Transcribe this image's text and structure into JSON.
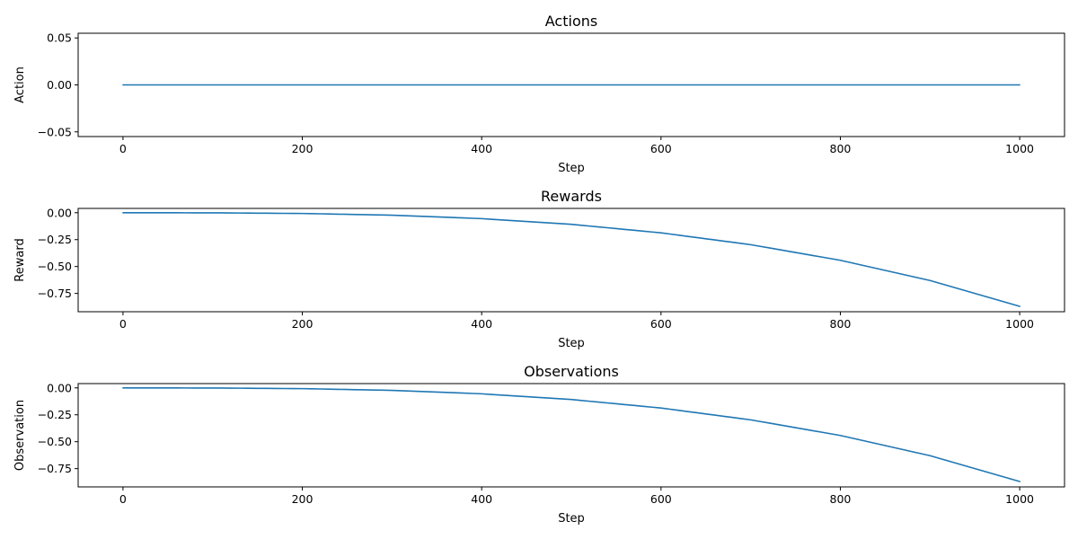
{
  "chart_data": [
    {
      "type": "line",
      "title": "Actions",
      "xlabel": "Step",
      "ylabel": "Action",
      "xlim": [
        -50,
        1050
      ],
      "ylim": [
        -0.055,
        0.055
      ],
      "xticks": [
        0,
        200,
        400,
        600,
        800,
        1000
      ],
      "xtick_labels": [
        "0",
        "200",
        "400",
        "600",
        "800",
        "1000"
      ],
      "yticks": [
        0.05,
        0.0,
        -0.05
      ],
      "ytick_labels": [
        "0.05",
        "0.00",
        "−0.05"
      ],
      "grid": false,
      "series": [
        {
          "color": "#1f77b4",
          "x": [
            0,
            1000
          ],
          "y": [
            0,
            0
          ]
        }
      ]
    },
    {
      "type": "line",
      "title": "Rewards",
      "xlabel": "Step",
      "ylabel": "Reward",
      "xlim": [
        -50,
        1050
      ],
      "ylim": [
        -0.92,
        0.04
      ],
      "xticks": [
        0,
        200,
        400,
        600,
        800,
        1000
      ],
      "xtick_labels": [
        "0",
        "200",
        "400",
        "600",
        "800",
        "1000"
      ],
      "yticks": [
        0.0,
        -0.25,
        -0.5,
        -0.75
      ],
      "ytick_labels": [
        "0.00",
        "−0.25",
        "−0.50",
        "−0.75"
      ],
      "grid": false,
      "series": [
        {
          "color": "#1f77b4",
          "x": [
            0,
            100,
            200,
            300,
            400,
            500,
            600,
            700,
            800,
            900,
            1000
          ],
          "y": [
            0.0,
            -0.001,
            -0.007,
            -0.023,
            -0.055,
            -0.108,
            -0.187,
            -0.297,
            -0.442,
            -0.63,
            -0.87
          ]
        }
      ]
    },
    {
      "type": "line",
      "title": "Observations",
      "xlabel": "Step",
      "ylabel": "Observation",
      "xlim": [
        -50,
        1050
      ],
      "ylim": [
        -0.92,
        0.04
      ],
      "xticks": [
        0,
        200,
        400,
        600,
        800,
        1000
      ],
      "xtick_labels": [
        "0",
        "200",
        "400",
        "600",
        "800",
        "1000"
      ],
      "yticks": [
        0.0,
        -0.25,
        -0.5,
        -0.75
      ],
      "ytick_labels": [
        "0.00",
        "−0.25",
        "−0.50",
        "−0.75"
      ],
      "grid": false,
      "series": [
        {
          "color": "#1f77b4",
          "x": [
            0,
            100,
            200,
            300,
            400,
            500,
            600,
            700,
            800,
            900,
            1000
          ],
          "y": [
            0.0,
            -0.001,
            -0.007,
            -0.023,
            -0.055,
            -0.108,
            -0.187,
            -0.297,
            -0.442,
            -0.63,
            -0.87
          ]
        }
      ]
    }
  ]
}
